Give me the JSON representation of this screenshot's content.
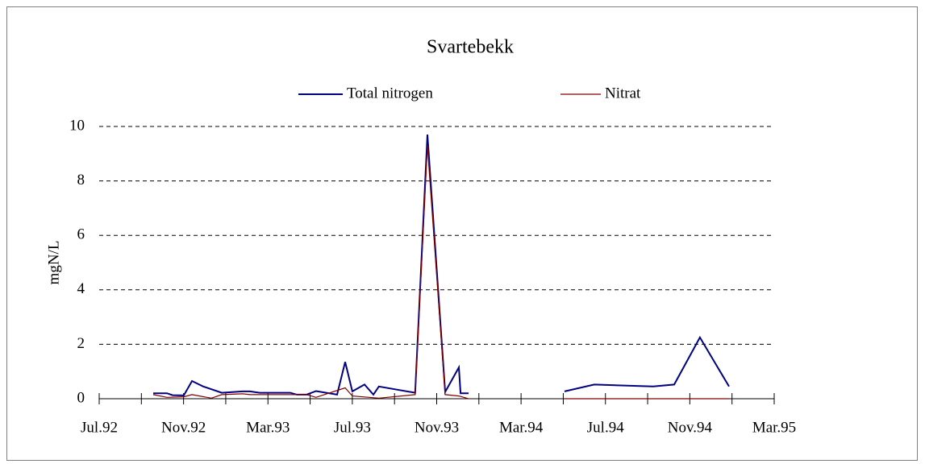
{
  "chart_data": {
    "type": "line",
    "title": "Svartebekk",
    "ylabel": "mgN/L",
    "xlim": [
      0,
      32
    ],
    "ylim": [
      0,
      10
    ],
    "xticks": [
      {
        "value": 0,
        "label": "Jul.92"
      },
      {
        "value": 4,
        "label": "Nov.92"
      },
      {
        "value": 8,
        "label": "Mar.93"
      },
      {
        "value": 12,
        "label": "Jul.93"
      },
      {
        "value": 16,
        "label": "Nov.93"
      },
      {
        "value": 20,
        "label": "Mar.94"
      },
      {
        "value": 24,
        "label": "Jul.94"
      },
      {
        "value": 28,
        "label": "Nov.94"
      },
      {
        "value": 32,
        "label": "Mar.95"
      }
    ],
    "xminor_ticks": [
      2,
      6,
      10,
      14,
      18,
      22,
      26,
      30
    ],
    "yticks": [
      0,
      2,
      4,
      6,
      8,
      10
    ],
    "grid": true,
    "legend": "top",
    "series": [
      {
        "name": "Total nitrogen",
        "color": "#000080",
        "x": [
          2.56,
          3.21,
          3.48,
          4.01,
          4.4,
          4.93,
          5.81,
          6.8,
          7.15,
          7.61,
          8.37,
          9.06,
          9.37,
          9.83,
          10.28,
          11.28,
          11.66,
          12.0,
          12.58,
          13.0,
          13.26,
          14.98,
          15.56,
          16.4,
          17.05,
          17.13,
          17.51,
          null,
          22.06,
          23.47,
          26.26,
          27.26,
          28.48,
          29.86
        ],
        "values": [
          0.2,
          0.2,
          0.13,
          0.12,
          0.65,
          0.45,
          0.22,
          0.27,
          0.27,
          0.22,
          0.22,
          0.22,
          0.15,
          0.15,
          0.28,
          0.15,
          1.35,
          0.27,
          0.52,
          0.15,
          0.45,
          0.22,
          9.7,
          0.25,
          1.15,
          0.2,
          0.2,
          null,
          0.27,
          0.52,
          0.45,
          0.52,
          2.25,
          0.45
        ]
      },
      {
        "name": "Nitrat",
        "color": "#800000",
        "x": [
          2.56,
          3.21,
          4.01,
          4.4,
          5.32,
          5.81,
          6.8,
          7.15,
          8.37,
          9.83,
          10.28,
          11.66,
          12.0,
          13.26,
          14.98,
          15.56,
          16.4,
          17.05,
          17.51,
          null,
          22.06,
          23.47,
          26.26,
          27.26,
          28.48,
          29.86
        ],
        "values": [
          0.15,
          0.05,
          0.07,
          0.15,
          0.02,
          0.15,
          0.18,
          0.15,
          0.15,
          0.15,
          0.05,
          0.4,
          0.1,
          0.02,
          0.15,
          9.3,
          0.15,
          0.1,
          0.0,
          null,
          0.0,
          0.0,
          0.0,
          0.0,
          0.0,
          0.0
        ]
      }
    ]
  }
}
